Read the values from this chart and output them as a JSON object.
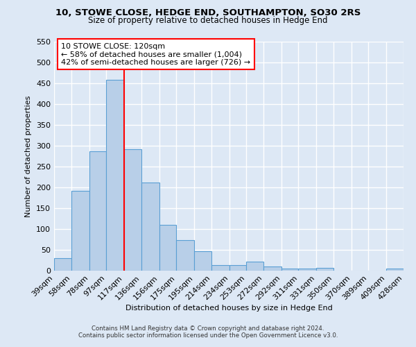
{
  "title": "10, STOWE CLOSE, HEDGE END, SOUTHAMPTON, SO30 2RS",
  "subtitle": "Size of property relative to detached houses in Hedge End",
  "xlabel": "Distribution of detached houses by size in Hedge End",
  "ylabel": "Number of detached properties",
  "bar_edges": [
    39,
    58,
    78,
    97,
    117,
    136,
    156,
    175,
    195,
    214,
    234,
    253,
    272,
    292,
    311,
    331,
    350,
    370,
    389,
    409,
    428
  ],
  "bar_heights": [
    30,
    192,
    287,
    459,
    292,
    212,
    110,
    73,
    46,
    14,
    14,
    22,
    10,
    5,
    5,
    6,
    0,
    0,
    0,
    5
  ],
  "bar_color": "#b8cfe8",
  "bar_edge_color": "#5a9fd4",
  "vline_x": 117,
  "vline_color": "red",
  "ylim": [
    0,
    550
  ],
  "yticks": [
    0,
    50,
    100,
    150,
    200,
    250,
    300,
    350,
    400,
    450,
    500,
    550
  ],
  "annotation_title": "10 STOWE CLOSE: 120sqm",
  "annotation_line1": "← 58% of detached houses are smaller (1,004)",
  "annotation_line2": "42% of semi-detached houses are larger (726) →",
  "annotation_box_color": "white",
  "annotation_box_edge_color": "red",
  "tick_labels": [
    "39sqm",
    "58sqm",
    "78sqm",
    "97sqm",
    "117sqm",
    "136sqm",
    "156sqm",
    "175sqm",
    "195sqm",
    "214sqm",
    "234sqm",
    "253sqm",
    "272sqm",
    "292sqm",
    "311sqm",
    "331sqm",
    "350sqm",
    "370sqm",
    "389sqm",
    "409sqm",
    "428sqm"
  ],
  "footnote1": "Contains HM Land Registry data © Crown copyright and database right 2024.",
  "footnote2": "Contains public sector information licensed under the Open Government Licence v3.0.",
  "bg_color": "#dde8f5",
  "grid_color": "white"
}
